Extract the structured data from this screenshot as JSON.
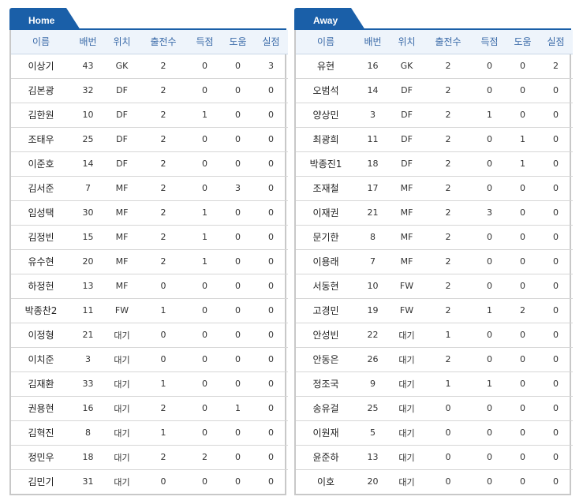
{
  "columns": [
    "이름",
    "배번",
    "위치",
    "출전수",
    "득점",
    "도움",
    "실점"
  ],
  "home": {
    "tab_label": "Home",
    "players": [
      [
        "이상기",
        "43",
        "GK",
        "2",
        "0",
        "0",
        "3"
      ],
      [
        "김본광",
        "32",
        "DF",
        "2",
        "0",
        "0",
        "0"
      ],
      [
        "김한원",
        "10",
        "DF",
        "2",
        "1",
        "0",
        "0"
      ],
      [
        "조태우",
        "25",
        "DF",
        "2",
        "0",
        "0",
        "0"
      ],
      [
        "이준호",
        "14",
        "DF",
        "2",
        "0",
        "0",
        "0"
      ],
      [
        "김서준",
        "7",
        "MF",
        "2",
        "0",
        "3",
        "0"
      ],
      [
        "임성택",
        "30",
        "MF",
        "2",
        "1",
        "0",
        "0"
      ],
      [
        "김정빈",
        "15",
        "MF",
        "2",
        "1",
        "0",
        "0"
      ],
      [
        "유수현",
        "20",
        "MF",
        "2",
        "1",
        "0",
        "0"
      ],
      [
        "하정헌",
        "13",
        "MF",
        "0",
        "0",
        "0",
        "0"
      ],
      [
        "박종찬2",
        "11",
        "FW",
        "1",
        "0",
        "0",
        "0"
      ],
      [
        "이정형",
        "21",
        "대기",
        "0",
        "0",
        "0",
        "0"
      ],
      [
        "이치준",
        "3",
        "대기",
        "0",
        "0",
        "0",
        "0"
      ],
      [
        "김재환",
        "33",
        "대기",
        "1",
        "0",
        "0",
        "0"
      ],
      [
        "권용현",
        "16",
        "대기",
        "2",
        "0",
        "1",
        "0"
      ],
      [
        "김혁진",
        "8",
        "대기",
        "1",
        "0",
        "0",
        "0"
      ],
      [
        "정민우",
        "18",
        "대기",
        "2",
        "2",
        "0",
        "0"
      ],
      [
        "김민기",
        "31",
        "대기",
        "0",
        "0",
        "0",
        "0"
      ]
    ]
  },
  "away": {
    "tab_label": "Away",
    "players": [
      [
        "유현",
        "16",
        "GK",
        "2",
        "0",
        "0",
        "2"
      ],
      [
        "오범석",
        "14",
        "DF",
        "2",
        "0",
        "0",
        "0"
      ],
      [
        "양상민",
        "3",
        "DF",
        "2",
        "1",
        "0",
        "0"
      ],
      [
        "최광희",
        "11",
        "DF",
        "2",
        "0",
        "1",
        "0"
      ],
      [
        "박종진1",
        "18",
        "DF",
        "2",
        "0",
        "1",
        "0"
      ],
      [
        "조재철",
        "17",
        "MF",
        "2",
        "0",
        "0",
        "0"
      ],
      [
        "이재권",
        "21",
        "MF",
        "2",
        "3",
        "0",
        "0"
      ],
      [
        "문기한",
        "8",
        "MF",
        "2",
        "0",
        "0",
        "0"
      ],
      [
        "이용래",
        "7",
        "MF",
        "2",
        "0",
        "0",
        "0"
      ],
      [
        "서동현",
        "10",
        "FW",
        "2",
        "0",
        "0",
        "0"
      ],
      [
        "고경민",
        "19",
        "FW",
        "2",
        "1",
        "2",
        "0"
      ],
      [
        "안성빈",
        "22",
        "대기",
        "1",
        "0",
        "0",
        "0"
      ],
      [
        "안동은",
        "26",
        "대기",
        "2",
        "0",
        "0",
        "0"
      ],
      [
        "정조국",
        "9",
        "대기",
        "1",
        "1",
        "0",
        "0"
      ],
      [
        "송유걸",
        "25",
        "대기",
        "0",
        "0",
        "0",
        "0"
      ],
      [
        "이원재",
        "5",
        "대기",
        "0",
        "0",
        "0",
        "0"
      ],
      [
        "윤준하",
        "13",
        "대기",
        "0",
        "0",
        "0",
        "0"
      ],
      [
        "이호",
        "20",
        "대기",
        "0",
        "0",
        "0",
        "0"
      ]
    ]
  }
}
